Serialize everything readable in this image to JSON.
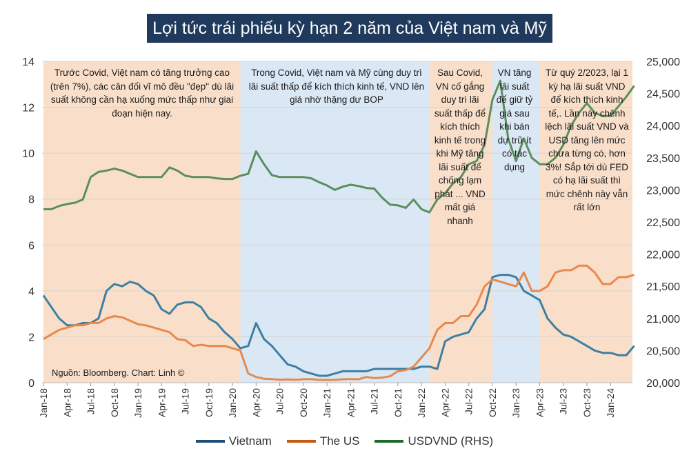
{
  "title": "Lợi tức trái phiếu kỳ hạn 2 năm của Việt nam và Mỹ",
  "source": "Nguồn: Bloomberg. Chart: Linh ©",
  "annotations": [
    {
      "text": "Trước Covid, Việt nam có tăng trưởng cao (trên 7%), các cân đối vĩ mô đều \"đẹp\" dù lãi suất không cần hạ xuống mức thấp như giai đoạn hiện nay."
    },
    {
      "text": "Trong Covid, Việt nam và Mỹ cùng duy trì lãi suất thấp để kích thích kinh tế, VND lên giá nhờ thặng dư BOP"
    },
    {
      "text": "Sau Covid, VN cố gắng duy trì lãi suất thấp để kích thích kinh tế trong khi Mỹ tăng lãi suất để chống lạm phát ... VND mất giá nhanh"
    },
    {
      "text": "VN tăng lãi suất để giữ tỷ giá sau khi bán dự trữ ít có tác dụng"
    },
    {
      "text": "Từ quý 2/2023, lại 1 kỳ hạ lãi suất VND để kích thích kinh tế,. Lần này chênh lệch lãi suất VND và USD tăng lên mức chưa từng có, hơn 3%! Sắp tới dù FED có hạ lãi suất thì mức chênh này vẫn rất lớn"
    }
  ],
  "chart_data": {
    "type": "line",
    "title": "Lợi tức trái phiếu kỳ hạn 2 năm của Việt nam và Mỹ",
    "x_start": "2018-01",
    "x_ticks": [
      "Jan-18",
      "Apr-18",
      "Jul-18",
      "Oct-18",
      "Jan-19",
      "Apr-19",
      "Jul-19",
      "Oct-19",
      "Jan-20",
      "Apr-20",
      "Jul-20",
      "Oct-20",
      "Jan-21",
      "Apr-21",
      "Jul-21",
      "Oct-21",
      "Jan-22",
      "Apr-22",
      "Jul-22",
      "Oct-22",
      "Jan-23",
      "Apr-23",
      "Jul-23",
      "Oct-23",
      "Jan-24"
    ],
    "y_left": {
      "range": [
        0,
        14
      ],
      "ticks": [
        "0",
        "2",
        "4",
        "6",
        "8",
        "10",
        "12",
        "14"
      ]
    },
    "y_right": {
      "range": [
        20000,
        25000
      ],
      "ticks": [
        "20,000",
        "20,500",
        "21,000",
        "21,500",
        "22,000",
        "22,500",
        "23,000",
        "23,500",
        "24,000",
        "24,500",
        "25,000"
      ]
    },
    "grid": true,
    "legend": "bottom",
    "regions": [
      {
        "from": "2018-01",
        "to": "2020-02",
        "color": "#f9dfca"
      },
      {
        "from": "2020-02",
        "to": "2022-02",
        "color": "#dae7f5"
      },
      {
        "from": "2022-02",
        "to": "2022-10",
        "color": "#f9dfca"
      },
      {
        "from": "2022-10",
        "to": "2023-04",
        "color": "#dae7f5"
      },
      {
        "from": "2023-04",
        "to": "2024-04",
        "color": "#f9dfca"
      }
    ],
    "series": [
      {
        "name": "Vietnam",
        "axis": "left",
        "color": "#3d7fa0",
        "legend_color": "#1f4e79",
        "values": [
          3.8,
          3.3,
          2.8,
          2.5,
          2.5,
          2.6,
          2.6,
          2.8,
          4.0,
          4.3,
          4.2,
          4.4,
          4.3,
          4.0,
          3.8,
          3.2,
          3.0,
          3.4,
          3.5,
          3.5,
          3.3,
          2.8,
          2.6,
          2.2,
          1.9,
          1.5,
          1.6,
          2.6,
          1.9,
          1.6,
          1.2,
          0.8,
          0.7,
          0.5,
          0.4,
          0.3,
          0.3,
          0.4,
          0.5,
          0.5,
          0.5,
          0.5,
          0.6,
          0.6,
          0.6,
          0.6,
          0.6,
          0.6,
          0.7,
          0.7,
          0.6,
          1.8,
          2.0,
          2.1,
          2.2,
          2.8,
          3.2,
          4.6,
          4.7,
          4.7,
          4.6,
          4.0,
          3.8,
          3.6,
          2.8,
          2.4,
          2.1,
          2.0,
          1.8,
          1.6,
          1.4,
          1.3,
          1.3,
          1.2,
          1.2,
          1.6
        ]
      },
      {
        "name": "The US",
        "axis": "left",
        "color": "#e8884c",
        "legend_color": "#c55a11",
        "values": [
          1.9,
          2.1,
          2.3,
          2.4,
          2.5,
          2.5,
          2.6,
          2.6,
          2.8,
          2.9,
          2.85,
          2.7,
          2.55,
          2.5,
          2.4,
          2.3,
          2.2,
          1.9,
          1.85,
          1.6,
          1.65,
          1.6,
          1.6,
          1.6,
          1.5,
          1.4,
          0.4,
          0.25,
          0.17,
          0.16,
          0.13,
          0.14,
          0.13,
          0.15,
          0.16,
          0.12,
          0.12,
          0.12,
          0.15,
          0.16,
          0.15,
          0.25,
          0.2,
          0.22,
          0.28,
          0.5,
          0.55,
          0.7,
          1.1,
          1.5,
          2.3,
          2.6,
          2.6,
          2.9,
          2.9,
          3.4,
          4.2,
          4.5,
          4.4,
          4.3,
          4.2,
          4.8,
          4.0,
          4.0,
          4.2,
          4.8,
          4.9,
          4.9,
          5.1,
          5.1,
          4.8,
          4.3,
          4.3,
          4.6,
          4.6,
          4.7
        ]
      },
      {
        "name": "USDVND (RHS)",
        "axis": "right",
        "color": "#5a8e5c",
        "legend_color": "#1e6b2e",
        "values": [
          22700,
          22700,
          22750,
          22780,
          22800,
          22850,
          23200,
          23280,
          23300,
          23330,
          23300,
          23250,
          23200,
          23200,
          23200,
          23200,
          23350,
          23300,
          23220,
          23200,
          23200,
          23200,
          23180,
          23170,
          23170,
          23220,
          23250,
          23600,
          23400,
          23230,
          23200,
          23200,
          23200,
          23200,
          23180,
          23120,
          23070,
          23000,
          23050,
          23080,
          23060,
          23030,
          23020,
          22880,
          22770,
          22760,
          22720,
          22850,
          22700,
          22650,
          22850,
          22950,
          23100,
          23200,
          23400,
          23450,
          23700,
          24400,
          24700,
          23800,
          23450,
          23800,
          23500,
          23400,
          23400,
          23500,
          23700,
          24000,
          24200,
          24350,
          24200,
          24150,
          24150,
          24300,
          24450,
          24620
        ]
      }
    ]
  }
}
